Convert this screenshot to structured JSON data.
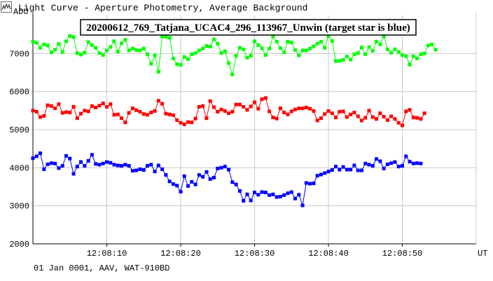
{
  "window": {
    "title": "Light Curve - Aperture Photometry, Average Background",
    "icon": "light-curve-app-icon"
  },
  "footer": {
    "info": "01 Jan 0001, AAV, WAT-910BD"
  },
  "colors": {
    "comp_green": "#00ff00",
    "comp_red": "#ff0000",
    "target_blue": "#0000ff",
    "grid": "#c8c8c8",
    "axis": "#000000"
  },
  "chart_data": {
    "type": "line",
    "title": "20200612_769_Tatjana_UCAC4_296_113967_Unwin (target star is blue)",
    "ylabel": "ADU",
    "xlabel": "UT",
    "ylim": [
      2000,
      8000
    ],
    "yticks": [
      2000,
      3000,
      4000,
      5000,
      6000,
      7000
    ],
    "xlim": [
      0,
      60
    ],
    "x_ticks": [
      {
        "t": 10,
        "label": "12:08:10"
      },
      {
        "t": 20,
        "label": "12:08:20"
      },
      {
        "t": 30,
        "label": "12:08:30"
      },
      {
        "t": 40,
        "label": "12:08:40"
      },
      {
        "t": 50,
        "label": "12:08:50"
      }
    ],
    "grid": true,
    "x_step_seconds": 0.5,
    "series": [
      {
        "color": "#00ff00",
        "values": [
          7310,
          7280,
          7150,
          7240,
          7210,
          7030,
          7100,
          7250,
          7040,
          7320,
          7460,
          7430,
          7010,
          6970,
          7020,
          7300,
          7220,
          7150,
          7010,
          6960,
          7080,
          7170,
          7320,
          7050,
          7270,
          7360,
          7080,
          7130,
          7090,
          7080,
          7130,
          6980,
          6730,
          6950,
          6520,
          7450,
          7440,
          7410,
          6870,
          6720,
          6700,
          6910,
          6850,
          6980,
          7010,
          7080,
          7130,
          7200,
          7180,
          7370,
          7260,
          7010,
          7060,
          6750,
          6450,
          6940,
          7150,
          7110,
          6890,
          6940,
          7320,
          7220,
          7140,
          6960,
          7130,
          7450,
          7310,
          7140,
          7030,
          7310,
          7290,
          7090,
          6950,
          7080,
          7080,
          7130,
          7190,
          7260,
          7310,
          7150,
          7460,
          7330,
          6800,
          6810,
          6830,
          6920,
          6840,
          6980,
          7010,
          7160,
          6980,
          7170,
          7070,
          7310,
          7240,
          7450,
          7110,
          7020,
          7110,
          7040,
          6960,
          6930,
          6710,
          6930,
          6870,
          6980,
          7000,
          7210,
          7240,
          7100
        ]
      },
      {
        "color": "#ff0000",
        "values": [
          5500,
          5470,
          5330,
          5360,
          5640,
          5620,
          5560,
          5670,
          5440,
          5460,
          5450,
          5600,
          5300,
          5420,
          5500,
          5480,
          5620,
          5580,
          5630,
          5690,
          5600,
          5670,
          5390,
          5400,
          5300,
          5190,
          5440,
          5560,
          5510,
          5470,
          5410,
          5390,
          5450,
          5490,
          5760,
          5680,
          5420,
          5400,
          5380,
          5250,
          5180,
          5140,
          5200,
          5190,
          5290,
          5600,
          5620,
          5300,
          5750,
          5590,
          5470,
          5530,
          5490,
          5430,
          5470,
          5660,
          5660,
          5600,
          5520,
          5610,
          5720,
          5550,
          5800,
          5830,
          5480,
          5320,
          5290,
          5560,
          5450,
          5400,
          5480,
          5530,
          5560,
          5560,
          5580,
          5550,
          5490,
          5240,
          5300,
          5410,
          5490,
          5430,
          5320,
          5470,
          5480,
          5330,
          5400,
          5450,
          5350,
          5240,
          5310,
          5500,
          5330,
          5280,
          5430,
          5340,
          5250,
          5350,
          5280,
          5180,
          5110,
          5480,
          5520,
          5320,
          5310,
          5280,
          5430
        ]
      },
      {
        "color": "#0000ff",
        "values": [
          4250,
          4300,
          4380,
          3960,
          4090,
          4120,
          4110,
          3990,
          4050,
          4310,
          4240,
          3840,
          4030,
          4150,
          4050,
          4180,
          4340,
          4100,
          4080,
          4110,
          4150,
          4130,
          4080,
          4060,
          4050,
          4080,
          4050,
          3920,
          3930,
          3960,
          3940,
          4050,
          4080,
          3900,
          4060,
          3960,
          3810,
          3640,
          3570,
          3530,
          3370,
          3780,
          3520,
          3630,
          3560,
          3810,
          3760,
          3890,
          3700,
          3740,
          3980,
          4000,
          4030,
          3950,
          3620,
          3560,
          3390,
          3130,
          3300,
          3140,
          3350,
          3290,
          3360,
          3350,
          3280,
          3300,
          3230,
          3240,
          3280,
          3330,
          3360,
          3190,
          3290,
          3010,
          3600,
          3580,
          3590,
          3790,
          3820,
          3860,
          3900,
          3940,
          4030,
          3950,
          4020,
          3950,
          3950,
          4060,
          3930,
          3930,
          4110,
          4080,
          4050,
          4230,
          4170,
          3980,
          4090,
          4120,
          4150,
          4030,
          4050,
          4300,
          4160,
          4110,
          4120,
          4110
        ]
      }
    ]
  }
}
